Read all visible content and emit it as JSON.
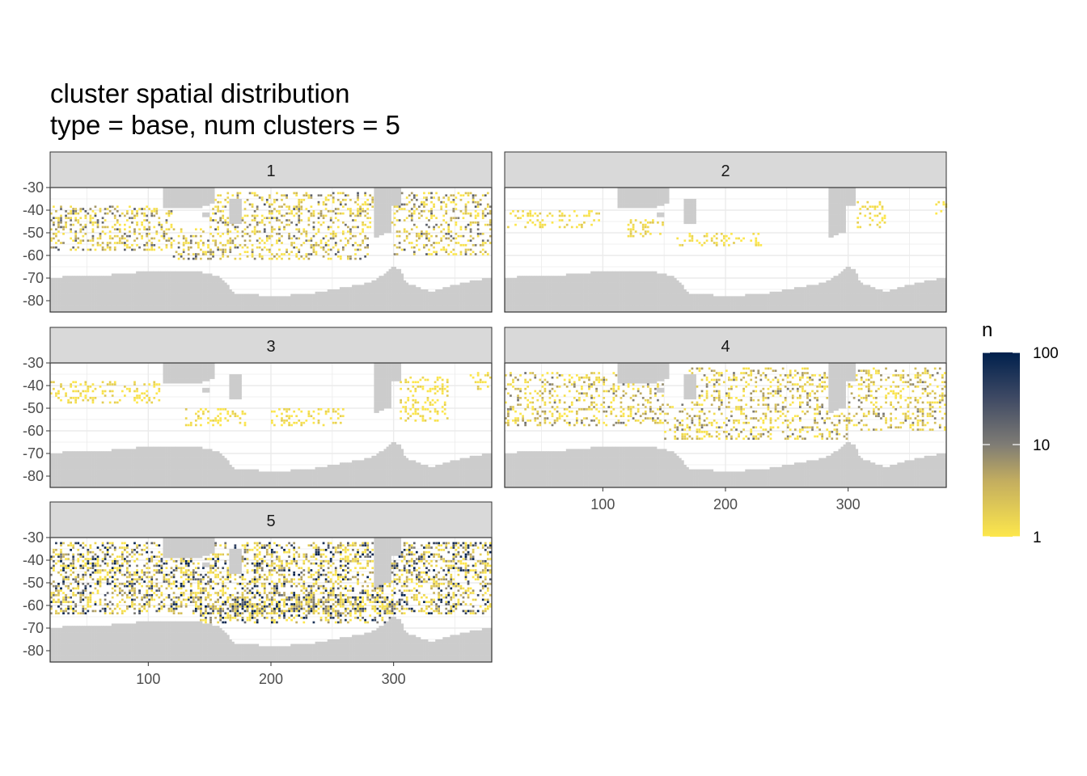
{
  "title": {
    "line1": "cluster spatial distribution",
    "line2": "type = base, num clusters = 5"
  },
  "chart_data": {
    "type": "heatmap",
    "facet_labels": [
      "1",
      "2",
      "3",
      "4",
      "5"
    ],
    "xlim": [
      20,
      380
    ],
    "ylim": [
      -85,
      -30
    ],
    "x_ticks": [
      100,
      200,
      300
    ],
    "y_ticks": [
      -30,
      -40,
      -50,
      -60,
      -70,
      -80
    ],
    "y_tick_labels": [
      "-30",
      "-40",
      "-50",
      "-60",
      "-70",
      "-80"
    ],
    "x_tick_labels": [
      "100",
      "200",
      "300"
    ],
    "land_color": "#cccccc",
    "strip_fill": "#d9d9d9",
    "legend": {
      "title": "n",
      "scale": "log10",
      "breaks": [
        1,
        10,
        100
      ],
      "break_labels": [
        "1",
        "10",
        "100"
      ],
      "colors_low_to_high": [
        "#fde74c",
        "#7f7c75",
        "#00204d"
      ],
      "position": "right"
    },
    "panels": [
      {
        "cluster": "1",
        "density": 0.55,
        "mean_log_n": 0.25,
        "bands": [
          {
            "lon": [
              20,
              120
            ],
            "lat": [
              -58,
              -38
            ]
          },
          {
            "lon": [
              120,
              280
            ],
            "lat": [
              -62,
              -48
            ]
          },
          {
            "lon": [
              150,
              300
            ],
            "lat": [
              -48,
              -32
            ]
          },
          {
            "lon": [
              300,
              380
            ],
            "lat": [
              -60,
              -32
            ]
          }
        ]
      },
      {
        "cluster": "2",
        "density": 0.45,
        "mean_log_n": 0.05,
        "bands": [
          {
            "lon": [
              22,
              100
            ],
            "lat": [
              -48,
              -40
            ]
          },
          {
            "lon": [
              120,
              150
            ],
            "lat": [
              -52,
              -44
            ]
          },
          {
            "lon": [
              160,
              230
            ],
            "lat": [
              -56,
              -50
            ]
          },
          {
            "lon": [
              305,
              330
            ],
            "lat": [
              -48,
              -36
            ]
          },
          {
            "lon": [
              365,
              380
            ],
            "lat": [
              -42,
              -36
            ]
          }
        ]
      },
      {
        "cluster": "3",
        "density": 0.5,
        "mean_log_n": 0.05,
        "bands": [
          {
            "lon": [
              20,
              110
            ],
            "lat": [
              -48,
              -38
            ]
          },
          {
            "lon": [
              130,
              180
            ],
            "lat": [
              -58,
              -50
            ]
          },
          {
            "lon": [
              200,
              260
            ],
            "lat": [
              -58,
              -50
            ]
          },
          {
            "lon": [
              305,
              345
            ],
            "lat": [
              -56,
              -36
            ]
          },
          {
            "lon": [
              360,
              380
            ],
            "lat": [
              -42,
              -34
            ]
          }
        ]
      },
      {
        "cluster": "4",
        "density": 0.5,
        "mean_log_n": 0.2,
        "bands": [
          {
            "lon": [
              20,
              150
            ],
            "lat": [
              -58,
              -34
            ]
          },
          {
            "lon": [
              150,
              300
            ],
            "lat": [
              -64,
              -48
            ]
          },
          {
            "lon": [
              170,
              290
            ],
            "lat": [
              -48,
              -32
            ]
          },
          {
            "lon": [
              300,
              380
            ],
            "lat": [
              -60,
              -32
            ]
          }
        ]
      },
      {
        "cluster": "5",
        "density": 0.75,
        "mean_log_n": 0.4,
        "bands": [
          {
            "lon": [
              20,
              380
            ],
            "lat": [
              -64,
              -32
            ]
          },
          {
            "lon": [
              140,
              300
            ],
            "lat": [
              -68,
              -56
            ]
          }
        ]
      }
    ]
  }
}
